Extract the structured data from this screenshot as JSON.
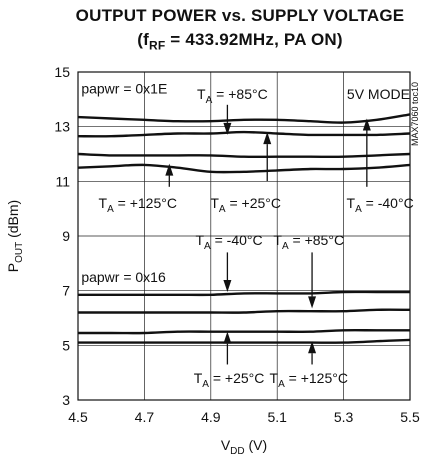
{
  "chart_data": {
    "type": "line",
    "title_line1": "OUTPUT POWER vs. SUPPLY VOLTAGE",
    "title_line2": {
      "prefix": "(f",
      "sub": "RF",
      "suffix": " = 433.92MHz, PA ON)"
    },
    "xlabel": {
      "main": "V",
      "sub": "DD",
      "unit": " (V)"
    },
    "ylabel": {
      "main": "P",
      "sub": "OUT",
      "unit": " (dBm)"
    },
    "xlim": [
      4.5,
      5.5
    ],
    "ylim": [
      3,
      15
    ],
    "xticks": [
      "4.5",
      "4.7",
      "4.9",
      "5.1",
      "5.3",
      "5.5"
    ],
    "yticks": [
      "3",
      "5",
      "7",
      "9",
      "11",
      "13",
      "15"
    ],
    "grid": true,
    "side_label": "MAX7060 toc10",
    "x": [
      4.5,
      4.6,
      4.7,
      4.8,
      4.9,
      5.0,
      5.1,
      5.2,
      5.3,
      5.4,
      5.5
    ],
    "series": [
      {
        "group": "0x1E",
        "temp": "+85°C",
        "values": [
          13.35,
          13.3,
          13.25,
          13.2,
          13.2,
          13.25,
          13.25,
          13.2,
          13.15,
          13.25,
          13.45
        ]
      },
      {
        "group": "0x1E",
        "temp": "+25°C",
        "values": [
          12.65,
          12.65,
          12.7,
          12.75,
          12.75,
          12.8,
          12.75,
          12.7,
          12.7,
          12.7,
          12.75
        ]
      },
      {
        "group": "0x1E",
        "temp": "-40°C",
        "values": [
          12.0,
          11.95,
          11.95,
          11.95,
          11.95,
          11.9,
          11.9,
          11.9,
          11.9,
          11.95,
          12.0
        ]
      },
      {
        "group": "0x1E",
        "temp": "+125°C",
        "values": [
          11.5,
          11.55,
          11.6,
          11.5,
          11.35,
          11.35,
          11.4,
          11.45,
          11.45,
          11.5,
          11.6
        ]
      },
      {
        "group": "0x16",
        "temp": "-40°C",
        "values": [
          6.85,
          6.85,
          6.85,
          6.85,
          6.85,
          6.9,
          6.9,
          6.9,
          6.95,
          6.95,
          6.95
        ]
      },
      {
        "group": "0x16",
        "temp": "+85°C",
        "values": [
          6.2,
          6.2,
          6.2,
          6.2,
          6.2,
          6.2,
          6.25,
          6.25,
          6.25,
          6.3,
          6.3
        ]
      },
      {
        "group": "0x16",
        "temp": "+25°C",
        "values": [
          5.45,
          5.45,
          5.45,
          5.5,
          5.5,
          5.5,
          5.5,
          5.5,
          5.55,
          5.55,
          5.55
        ]
      },
      {
        "group": "0x16",
        "temp": "+125°C",
        "values": [
          5.1,
          5.1,
          5.1,
          5.1,
          5.1,
          5.1,
          5.1,
          5.1,
          5.1,
          5.15,
          5.2
        ]
      }
    ],
    "annotations": [
      {
        "text": "papwr = 0x1E",
        "x": 4.51,
        "y": 14.4,
        "anchor": "start"
      },
      {
        "text": "5V MODE",
        "x": 5.31,
        "y": 14.2,
        "anchor": "start"
      },
      {
        "text": "papwr = 0x16",
        "x": 4.51,
        "y": 7.5,
        "anchor": "start"
      }
    ],
    "temp_labels": [
      {
        "prefix": "T",
        "sub": "A",
        "text": " = +85°C",
        "x": 4.965,
        "y": 14.2,
        "anchor": "middle"
      },
      {
        "prefix": "T",
        "sub": "A",
        "text": " = +125°C",
        "x": 4.68,
        "y": 10.2,
        "anchor": "middle"
      },
      {
        "prefix": "T",
        "sub": "A",
        "text": " = +25°C",
        "x": 5.005,
        "y": 10.2,
        "anchor": "middle"
      },
      {
        "prefix": "T",
        "sub": "A",
        "text": " = -40°C",
        "x": 5.41,
        "y": 10.2,
        "anchor": "middle"
      },
      {
        "prefix": "T",
        "sub": "A",
        "text": " = -40°C",
        "x": 4.955,
        "y": 8.85,
        "anchor": "middle"
      },
      {
        "prefix": "T",
        "sub": "A",
        "text": " = +85°C",
        "x": 5.195,
        "y": 8.85,
        "anchor": "middle"
      },
      {
        "prefix": "T",
        "sub": "A",
        "text": " = +25°C",
        "x": 4.955,
        "y": 3.8,
        "anchor": "middle"
      },
      {
        "prefix": "T",
        "sub": "A",
        "text": " = +125°C",
        "x": 5.195,
        "y": 3.8,
        "anchor": "middle"
      }
    ],
    "arrows": [
      {
        "x": 4.95,
        "y_from": 13.8,
        "y_to": 12.7
      },
      {
        "x": 5.07,
        "y_from": 11.0,
        "y_to": 12.8
      },
      {
        "x": 4.775,
        "y_from": 10.8,
        "y_to": 11.65
      },
      {
        "x": 5.37,
        "y_from": 10.8,
        "y_to": 13.3
      },
      {
        "x": 4.95,
        "y_from": 8.4,
        "y_to": 6.95
      },
      {
        "x": 5.205,
        "y_from": 8.4,
        "y_to": 6.35
      },
      {
        "x": 4.95,
        "y_from": 4.3,
        "y_to": 5.5
      },
      {
        "x": 5.205,
        "y_from": 4.3,
        "y_to": 5.15
      }
    ]
  }
}
